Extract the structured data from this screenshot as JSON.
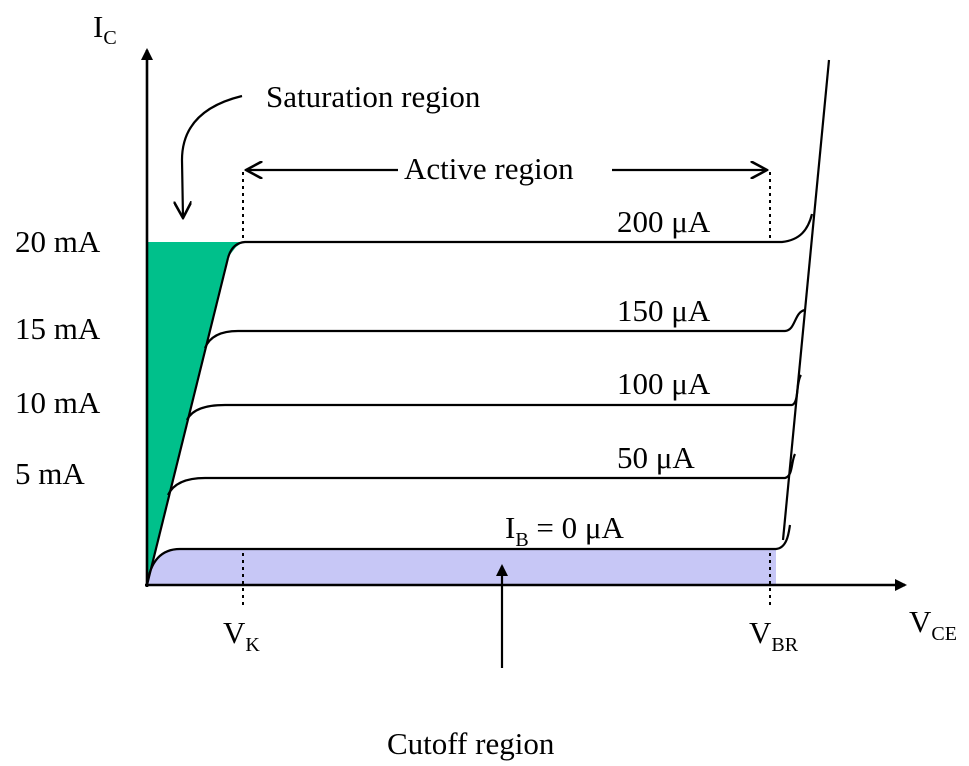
{
  "colors": {
    "saturation_fill": "#00C08B",
    "cutoff_fill": "#C7C7F6",
    "ink": "#000000"
  },
  "axes": {
    "y_label": "I",
    "y_label_sub": "C",
    "x_label": "V",
    "x_label_sub": "CE"
  },
  "y_ticks": [
    "20 mA",
    "15 mA",
    "10 mA",
    "5 mA"
  ],
  "x_marks": [
    {
      "main": "V",
      "sub": "K"
    },
    {
      "main": "V",
      "sub": "BR"
    }
  ],
  "curves": [
    {
      "label": "200 μA"
    },
    {
      "label": "150 μA"
    },
    {
      "label": "100 μA"
    },
    {
      "label": "50 μA"
    },
    {
      "label_prefix": "I",
      "label_sub": "B",
      "label_suffix": " = 0 μA"
    }
  ],
  "annotations": {
    "saturation": "Saturation region",
    "active": "Active region",
    "cutoff": "Cutoff region"
  }
}
